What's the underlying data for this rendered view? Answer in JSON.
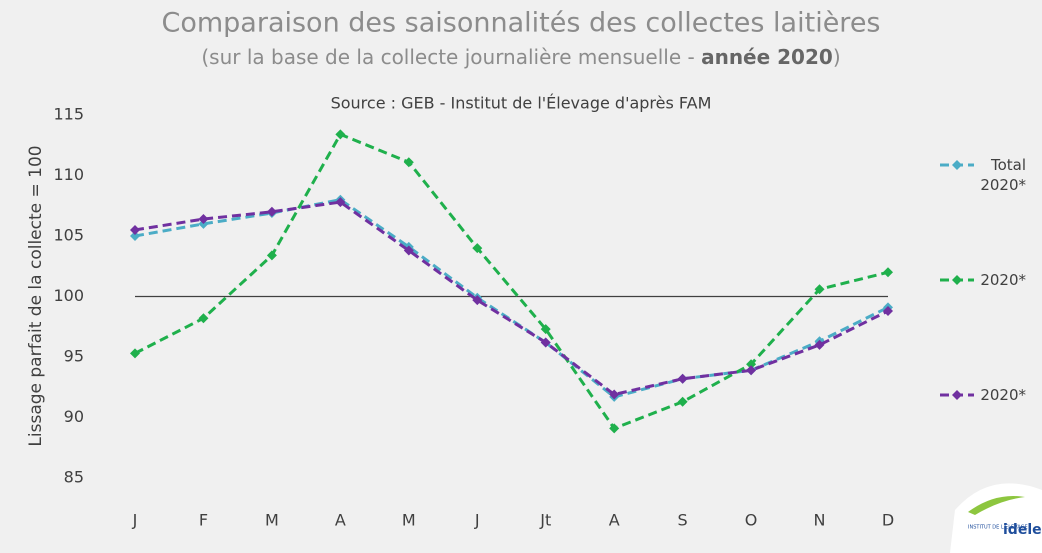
{
  "chart_data": {
    "type": "line",
    "title": "Comparaison des saisonnalités des collectes laitières",
    "subtitle": {
      "text": "(sur la base de la collecte journalière mensuelle - ",
      "bold": "année 2020",
      "end": ")"
    },
    "source": "Source : GEB - Institut de l'Élevage d'après FAM",
    "y_label": "Lissage parfait de la collecte = 100",
    "categories": [
      "J",
      "F",
      "M",
      "A",
      "M",
      "J",
      "Jt",
      "A",
      "S",
      "O",
      "N",
      "D"
    ],
    "series": [
      {
        "name": "Total 2020*",
        "color": "#4bacc6",
        "values": [
          105,
          106,
          106.9,
          108,
          104.1,
          99.9,
          96.2,
          91.7,
          93.2,
          93.9,
          96.3,
          99.1
        ]
      },
      {
        "name": "2020*",
        "color": "#1fb04c",
        "values": [
          95.3,
          98.2,
          103.4,
          113.4,
          111.1,
          104,
          97.3,
          89.1,
          91.3,
          94.4,
          100.6,
          102
        ]
      },
      {
        "name": "2020*",
        "color": "#7030a0",
        "values": [
          105.5,
          106.4,
          107,
          107.8,
          103.8,
          99.7,
          96.2,
          91.9,
          93.2,
          93.9,
          96,
          98.8
        ]
      }
    ],
    "reference_line": 100,
    "ylim": [
      85,
      115
    ],
    "yticks": [
      85,
      90,
      95,
      100,
      105,
      110,
      115
    ],
    "grid": false,
    "logo": {
      "small": "INSTITUT DE L'ÉLEVAGE",
      "brand": "idele"
    }
  }
}
